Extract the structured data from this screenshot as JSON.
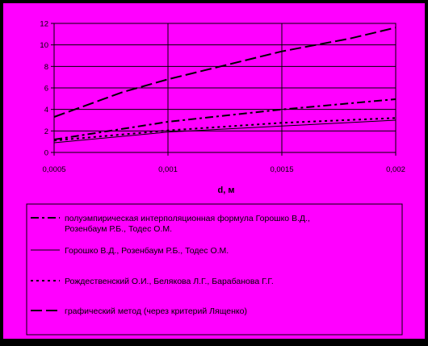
{
  "chart_data": {
    "type": "line",
    "title": "",
    "xlabel": "d, м",
    "ylabel": "",
    "xlim": [
      0.0005,
      0.002
    ],
    "ylim": [
      0,
      12
    ],
    "x_ticks": [
      "0,0005",
      "0,001",
      "0,0015",
      "0,002"
    ],
    "y_ticks": [
      "0",
      "2",
      "4",
      "6",
      "8",
      "10",
      "12"
    ],
    "grid": true,
    "legend_position": "bottom",
    "colors": {
      "outer_background": "#000000",
      "plot_background": "#ff00ff",
      "line": "#000000"
    },
    "series": [
      {
        "name": "полуэмпирическая интерполяционная формула Горошко В.Д., Розенбаум Р.Б., Тодес О.М.",
        "dash": "dash-dot",
        "x": [
          0.0005,
          0.001,
          0.0015,
          0.002
        ],
        "values": [
          1.2,
          2.85,
          4.0,
          4.95
        ]
      },
      {
        "name": "Горошко В.Д., Розенбаум Р.Б., Тодес О.М.",
        "dash": "solid",
        "x": [
          0.0005,
          0.001,
          0.0015,
          0.002
        ],
        "values": [
          0.9,
          1.9,
          2.45,
          3.0
        ]
      },
      {
        "name": "Рождественский О.И., Белякова Л.Г., Барабанова Г.Г.",
        "dash": "dotted",
        "x": [
          0.0005,
          0.001,
          0.0015,
          0.002
        ],
        "values": [
          1.1,
          2.05,
          2.75,
          3.2
        ]
      },
      {
        "name": "графический метод (через критерий Лященко)",
        "dash": "long-dash",
        "x": [
          0.0005,
          0.0008,
          0.001,
          0.0015,
          0.0018,
          0.002
        ],
        "values": [
          3.3,
          5.6,
          6.8,
          9.4,
          10.6,
          11.6
        ]
      }
    ]
  }
}
